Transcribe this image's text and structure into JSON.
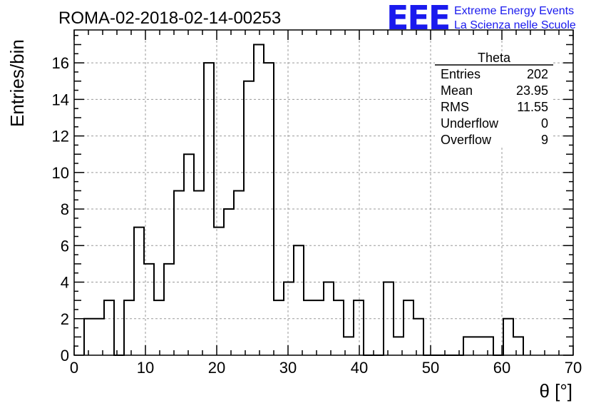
{
  "header": {
    "run_title": "ROMA-02-2018-02-14-00253",
    "logo_text": "EEE",
    "brand_line1": "Extreme Energy Events",
    "brand_line2": "La Scienza nelle Scuole",
    "brand_color": "#1a1aee"
  },
  "stats": {
    "title": "Theta",
    "rows": [
      {
        "label": "Entries",
        "value": "202"
      },
      {
        "label": "Mean",
        "value": "23.95"
      },
      {
        "label": "RMS",
        "value": "11.55"
      },
      {
        "label": "Underflow",
        "value": "0"
      },
      {
        "label": "Overflow",
        "value": "9"
      }
    ]
  },
  "chart_data": {
    "type": "histogram",
    "title": "ROMA-02-2018-02-14-00253",
    "xlabel": "θ [°]",
    "ylabel": "Entries/bin",
    "xlim": [
      0,
      70
    ],
    "ylim": [
      0,
      17.8
    ],
    "grid": true,
    "line_color": "#000000",
    "bin_width": 1.4,
    "bin_start": 1.4,
    "bin_values": [
      2,
      2,
      3,
      0,
      3,
      7,
      5,
      3,
      5,
      9,
      11,
      9,
      16,
      7,
      8,
      9,
      15,
      17,
      16,
      3,
      4,
      6,
      3,
      3,
      4,
      3,
      1,
      3,
      0,
      0,
      4,
      1,
      3,
      2,
      0,
      0,
      0,
      0,
      1,
      1,
      1,
      0,
      2,
      1
    ],
    "x_ticks": [
      0,
      10,
      20,
      30,
      40,
      50,
      60,
      70
    ],
    "y_ticks": [
      0,
      2,
      4,
      6,
      8,
      10,
      12,
      14,
      16
    ]
  }
}
